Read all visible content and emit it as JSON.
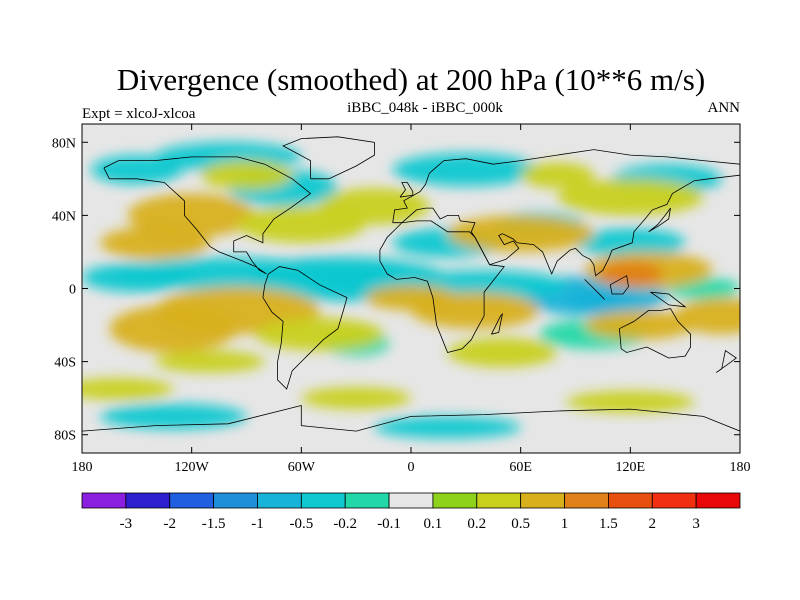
{
  "chart_data": {
    "type": "heatmap",
    "title": "Divergence (smoothed) at 200 hPa (10**6 m/s)",
    "subtitle_left": "Expt = xlcoJ-xlcoa",
    "subtitle_center": "iBBC_048k - iBBC_000k",
    "subtitle_right": "ANN",
    "x_range": [
      -180,
      180
    ],
    "y_range": [
      -90,
      90
    ],
    "x_ticks": [
      {
        "value": -180,
        "label": "180"
      },
      {
        "value": -120,
        "label": "120W"
      },
      {
        "value": -60,
        "label": "60W"
      },
      {
        "value": 0,
        "label": "0"
      },
      {
        "value": 60,
        "label": "60E"
      },
      {
        "value": 120,
        "label": "120E"
      },
      {
        "value": 180,
        "label": "180"
      }
    ],
    "y_ticks": [
      {
        "value": 80,
        "label": "80N"
      },
      {
        "value": 40,
        "label": "40N"
      },
      {
        "value": 0,
        "label": "0"
      },
      {
        "value": -40,
        "label": "40S"
      },
      {
        "value": -80,
        "label": "80S"
      }
    ],
    "colorbar": {
      "levels": [
        "-3",
        "-2",
        "-1.5",
        "-1",
        "-0.5",
        "-0.2",
        "-0.1",
        "0.1",
        "0.2",
        "0.5",
        "1",
        "1.5",
        "2",
        "3"
      ],
      "colors": [
        "#8a1fe0",
        "#2b1fd0",
        "#1f5fe0",
        "#1e8fd8",
        "#18b3d8",
        "#10c8d0",
        "#22d8a8",
        "#e6e6e6",
        "#8ed21c",
        "#c8d01c",
        "#d8b01c",
        "#e08018",
        "#e85010",
        "#f03010",
        "#e80808"
      ]
    },
    "features": [
      {
        "lon": -25,
        "lat": 2,
        "rx": 22,
        "ry": 6,
        "level": 3
      },
      {
        "lon": -45,
        "lat": 8,
        "rx": 40,
        "ry": 9,
        "level": 4
      },
      {
        "lon": -35,
        "lat": 5,
        "rx": 55,
        "ry": 12,
        "level": 5
      },
      {
        "lon": -100,
        "lat": 8,
        "rx": 60,
        "ry": 9,
        "level": 5
      },
      {
        "lon": -150,
        "lat": 6,
        "rx": 30,
        "ry": 8,
        "level": 5
      },
      {
        "lon": 105,
        "lat": -6,
        "rx": 18,
        "ry": 7,
        "level": 3
      },
      {
        "lon": 100,
        "lat": -4,
        "rx": 40,
        "ry": 11,
        "level": 4
      },
      {
        "lon": 40,
        "lat": 2,
        "rx": 45,
        "ry": 8,
        "level": 5
      },
      {
        "lon": 120,
        "lat": 25,
        "rx": 30,
        "ry": 8,
        "level": 5
      },
      {
        "lon": 160,
        "lat": 0,
        "rx": 20,
        "ry": 6,
        "level": 6
      },
      {
        "lon": -70,
        "lat": 55,
        "rx": 30,
        "ry": 10,
        "level": 5
      },
      {
        "lon": -100,
        "lat": 72,
        "rx": 40,
        "ry": 8,
        "level": 5
      },
      {
        "lon": 30,
        "lat": 65,
        "rx": 40,
        "ry": 9,
        "level": 5
      },
      {
        "lon": 140,
        "lat": 60,
        "rx": 30,
        "ry": 8,
        "level": 5
      },
      {
        "lon": -150,
        "lat": 65,
        "rx": 25,
        "ry": 8,
        "level": 5
      },
      {
        "lon": 20,
        "lat": 25,
        "rx": 30,
        "ry": 8,
        "level": 5
      },
      {
        "lon": 70,
        "lat": 35,
        "rx": 25,
        "ry": 7,
        "level": 5
      },
      {
        "lon": -130,
        "lat": -70,
        "rx": 40,
        "ry": 7,
        "level": 5
      },
      {
        "lon": 20,
        "lat": -76,
        "rx": 40,
        "ry": 6,
        "level": 5
      },
      {
        "lon": -30,
        "lat": -30,
        "rx": 18,
        "ry": 7,
        "level": 6
      },
      {
        "lon": 100,
        "lat": -25,
        "rx": 30,
        "ry": 8,
        "level": 6
      },
      {
        "lon": -120,
        "lat": 40,
        "rx": 35,
        "ry": 12,
        "level": 10
      },
      {
        "lon": -60,
        "lat": 35,
        "rx": 35,
        "ry": 10,
        "level": 9
      },
      {
        "lon": 60,
        "lat": 30,
        "rx": 40,
        "ry": 10,
        "level": 10
      },
      {
        "lon": -20,
        "lat": 45,
        "rx": 30,
        "ry": 10,
        "level": 9
      },
      {
        "lon": 120,
        "lat": 50,
        "rx": 40,
        "ry": 10,
        "level": 9
      },
      {
        "lon": -140,
        "lat": 25,
        "rx": 30,
        "ry": 9,
        "level": 10
      },
      {
        "lon": 130,
        "lat": 10,
        "rx": 35,
        "ry": 10,
        "level": 10
      },
      {
        "lon": 120,
        "lat": 8,
        "rx": 18,
        "ry": 7,
        "level": 11
      },
      {
        "lon": -95,
        "lat": -12,
        "rx": 45,
        "ry": 13,
        "level": 10
      },
      {
        "lon": -130,
        "lat": -22,
        "rx": 35,
        "ry": 13,
        "level": 10
      },
      {
        "lon": 0,
        "lat": -5,
        "rx": 25,
        "ry": 7,
        "level": 10
      },
      {
        "lon": 35,
        "lat": -12,
        "rx": 35,
        "ry": 10,
        "level": 10
      },
      {
        "lon": 50,
        "lat": -35,
        "rx": 30,
        "ry": 8,
        "level": 9
      },
      {
        "lon": 125,
        "lat": -20,
        "rx": 30,
        "ry": 8,
        "level": 10
      },
      {
        "lon": 170,
        "lat": -15,
        "rx": 25,
        "ry": 10,
        "level": 10
      },
      {
        "lon": -50,
        "lat": -25,
        "rx": 35,
        "ry": 9,
        "level": 9
      },
      {
        "lon": -90,
        "lat": 62,
        "rx": 25,
        "ry": 8,
        "level": 9
      },
      {
        "lon": 80,
        "lat": 62,
        "rx": 20,
        "ry": 7,
        "level": 9
      },
      {
        "lon": -160,
        "lat": -55,
        "rx": 30,
        "ry": 6,
        "level": 9
      },
      {
        "lon": -30,
        "lat": -60,
        "rx": 30,
        "ry": 6,
        "level": 9
      },
      {
        "lon": 120,
        "lat": -62,
        "rx": 35,
        "ry": 6,
        "level": 9
      },
      {
        "lon": -110,
        "lat": -40,
        "rx": 30,
        "ry": 6,
        "level": 9
      }
    ]
  }
}
